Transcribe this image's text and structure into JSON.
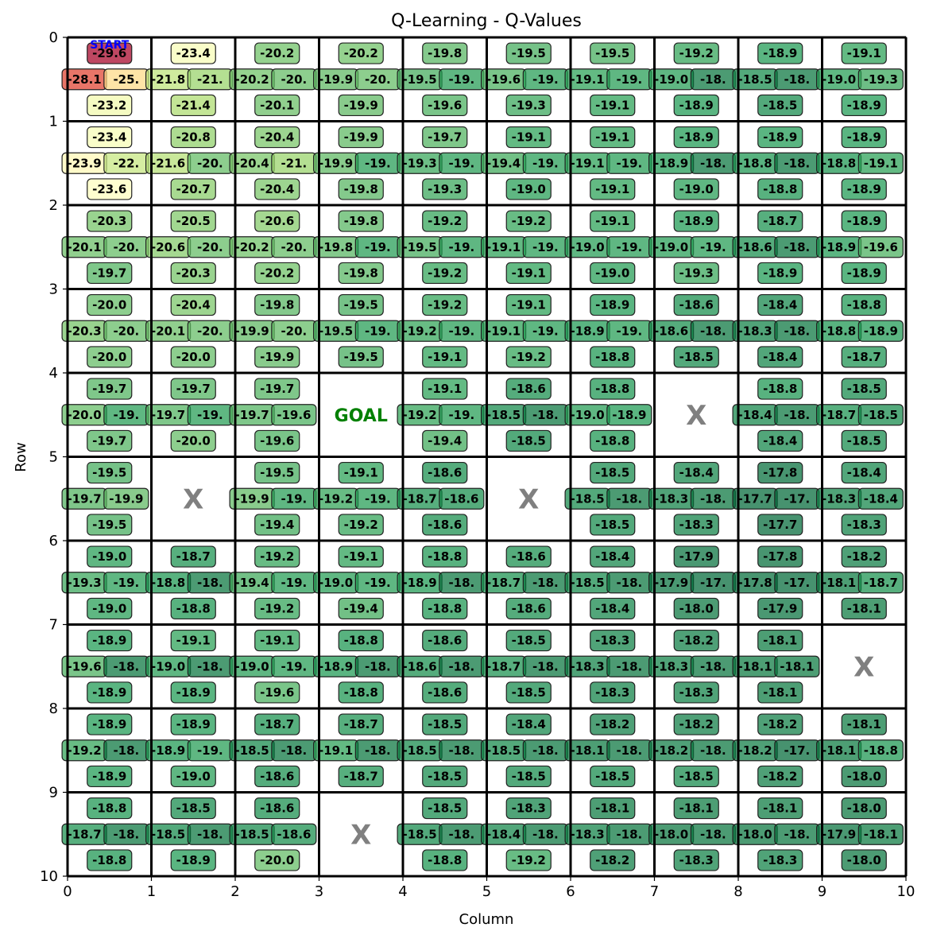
{
  "chart_data": {
    "type": "heatmap",
    "title": "Q-Learning - Q-Values",
    "xlabel": "Column",
    "ylabel": "Row",
    "xlim": [
      0,
      10
    ],
    "ylim": [
      10,
      0
    ],
    "xticks": [
      "0",
      "1",
      "2",
      "3",
      "4",
      "5",
      "6",
      "7",
      "8",
      "9",
      "10"
    ],
    "yticks": [
      "0",
      "1",
      "2",
      "3",
      "4",
      "5",
      "6",
      "7",
      "8",
      "9",
      "10"
    ],
    "start_label": "START",
    "goal_label": "GOAL",
    "obstacle_label": "X",
    "start_cell": [
      0,
      0
    ],
    "goal_cell": [
      4,
      3
    ],
    "obstacles": [
      [
        4,
        7
      ],
      [
        5,
        1
      ],
      [
        5,
        5
      ],
      [
        7,
        9
      ],
      [
        9,
        3
      ]
    ],
    "colormap": "RdYlGn",
    "color_range": [
      -29.6,
      -17.7
    ],
    "value_order": "up, left, right, down",
    "cells": [
      {
        "row": 0,
        "col": 0,
        "values": [
          "-29.6",
          "-28.1",
          "-25.",
          "-23.2"
        ]
      },
      {
        "row": 0,
        "col": 1,
        "values": [
          "-23.4",
          "-21.8",
          "-21.",
          "-21.4"
        ]
      },
      {
        "row": 0,
        "col": 2,
        "values": [
          "-20.2",
          "-20.2",
          "-20.",
          "-20.1"
        ]
      },
      {
        "row": 0,
        "col": 3,
        "values": [
          "-20.2",
          "-19.9",
          "-20.",
          "-19.9"
        ]
      },
      {
        "row": 0,
        "col": 4,
        "values": [
          "-19.8",
          "-19.5",
          "-19.",
          "-19.6"
        ]
      },
      {
        "row": 0,
        "col": 5,
        "values": [
          "-19.5",
          "-19.6",
          "-19.",
          "-19.3"
        ]
      },
      {
        "row": 0,
        "col": 6,
        "values": [
          "-19.5",
          "-19.1",
          "-19.",
          "-19.1"
        ]
      },
      {
        "row": 0,
        "col": 7,
        "values": [
          "-19.2",
          "-19.0",
          "-18.",
          "-18.9"
        ]
      },
      {
        "row": 0,
        "col": 8,
        "values": [
          "-18.9",
          "-18.5",
          "-18.",
          "-18.5"
        ]
      },
      {
        "row": 0,
        "col": 9,
        "values": [
          "-19.1",
          "-19.0",
          "-19.3",
          "-18.9"
        ]
      },
      {
        "row": 1,
        "col": 0,
        "values": [
          "-23.4",
          "-23.9",
          "-22.",
          "-23.6"
        ]
      },
      {
        "row": 1,
        "col": 1,
        "values": [
          "-20.8",
          "-21.6",
          "-20.",
          "-20.7"
        ]
      },
      {
        "row": 1,
        "col": 2,
        "values": [
          "-20.4",
          "-20.4",
          "-21.",
          "-20.4"
        ]
      },
      {
        "row": 1,
        "col": 3,
        "values": [
          "-19.9",
          "-19.9",
          "-19.",
          "-19.8"
        ]
      },
      {
        "row": 1,
        "col": 4,
        "values": [
          "-19.7",
          "-19.3",
          "-19.",
          "-19.3"
        ]
      },
      {
        "row": 1,
        "col": 5,
        "values": [
          "-19.1",
          "-19.4",
          "-19.",
          "-19.0"
        ]
      },
      {
        "row": 1,
        "col": 6,
        "values": [
          "-19.1",
          "-19.1",
          "-19.",
          "-19.1"
        ]
      },
      {
        "row": 1,
        "col": 7,
        "values": [
          "-18.9",
          "-18.9",
          "-18.",
          "-19.0"
        ]
      },
      {
        "row": 1,
        "col": 8,
        "values": [
          "-18.9",
          "-18.8",
          "-18.",
          "-18.8"
        ]
      },
      {
        "row": 1,
        "col": 9,
        "values": [
          "-18.9",
          "-18.8",
          "-19.1",
          "-18.9"
        ]
      },
      {
        "row": 2,
        "col": 0,
        "values": [
          "-20.3",
          "-20.1",
          "-20.",
          "-19.7"
        ]
      },
      {
        "row": 2,
        "col": 1,
        "values": [
          "-20.5",
          "-20.6",
          "-20.",
          "-20.3"
        ]
      },
      {
        "row": 2,
        "col": 2,
        "values": [
          "-20.6",
          "-20.2",
          "-20.",
          "-20.2"
        ]
      },
      {
        "row": 2,
        "col": 3,
        "values": [
          "-19.8",
          "-19.8",
          "-19.",
          "-19.8"
        ]
      },
      {
        "row": 2,
        "col": 4,
        "values": [
          "-19.2",
          "-19.5",
          "-19.",
          "-19.2"
        ]
      },
      {
        "row": 2,
        "col": 5,
        "values": [
          "-19.2",
          "-19.1",
          "-19.",
          "-19.1"
        ]
      },
      {
        "row": 2,
        "col": 6,
        "values": [
          "-19.1",
          "-19.0",
          "-19.",
          "-19.0"
        ]
      },
      {
        "row": 2,
        "col": 7,
        "values": [
          "-18.9",
          "-19.0",
          "-19.",
          "-19.3"
        ]
      },
      {
        "row": 2,
        "col": 8,
        "values": [
          "-18.7",
          "-18.6",
          "-18.",
          "-18.9"
        ]
      },
      {
        "row": 2,
        "col": 9,
        "values": [
          "-18.9",
          "-18.9",
          "-19.6",
          "-18.9"
        ]
      },
      {
        "row": 3,
        "col": 0,
        "values": [
          "-20.0",
          "-20.3",
          "-20.",
          "-20.0"
        ]
      },
      {
        "row": 3,
        "col": 1,
        "values": [
          "-20.4",
          "-20.1",
          "-20.",
          "-20.0"
        ]
      },
      {
        "row": 3,
        "col": 2,
        "values": [
          "-19.8",
          "-19.9",
          "-20.",
          "-19.9"
        ]
      },
      {
        "row": 3,
        "col": 3,
        "values": [
          "-19.5",
          "-19.5",
          "-19.",
          "-19.5"
        ]
      },
      {
        "row": 3,
        "col": 4,
        "values": [
          "-19.2",
          "-19.2",
          "-19.",
          "-19.1"
        ]
      },
      {
        "row": 3,
        "col": 5,
        "values": [
          "-19.1",
          "-19.1",
          "-19.",
          "-19.2"
        ]
      },
      {
        "row": 3,
        "col": 6,
        "values": [
          "-18.9",
          "-18.9",
          "-19.",
          "-18.8"
        ]
      },
      {
        "row": 3,
        "col": 7,
        "values": [
          "-18.6",
          "-18.6",
          "-18.",
          "-18.5"
        ]
      },
      {
        "row": 3,
        "col": 8,
        "values": [
          "-18.4",
          "-18.3",
          "-18.",
          "-18.4"
        ]
      },
      {
        "row": 3,
        "col": 9,
        "values": [
          "-18.8",
          "-18.8",
          "-18.9",
          "-18.7"
        ]
      },
      {
        "row": 4,
        "col": 0,
        "values": [
          "-19.7",
          "-20.0",
          "-19.",
          "-19.7"
        ]
      },
      {
        "row": 4,
        "col": 1,
        "values": [
          "-19.7",
          "-19.7",
          "-19.",
          "-20.0"
        ]
      },
      {
        "row": 4,
        "col": 2,
        "values": [
          "-19.7",
          "-19.7",
          "-19.6",
          "-19.6"
        ]
      },
      {
        "row": 4,
        "col": 4,
        "values": [
          "-19.1",
          "-19.2",
          "-19.",
          "-19.4"
        ]
      },
      {
        "row": 4,
        "col": 5,
        "values": [
          "-18.6",
          "-18.5",
          "-18.",
          "-18.5"
        ]
      },
      {
        "row": 4,
        "col": 6,
        "values": [
          "-18.8",
          "-19.0",
          "-18.9",
          "-18.8"
        ]
      },
      {
        "row": 4,
        "col": 8,
        "values": [
          "-18.8",
          "-18.4",
          "-18.",
          "-18.4"
        ]
      },
      {
        "row": 4,
        "col": 9,
        "values": [
          "-18.5",
          "-18.7",
          "-18.5",
          "-18.5"
        ]
      },
      {
        "row": 5,
        "col": 0,
        "values": [
          "-19.5",
          "-19.7",
          "-19.9",
          "-19.5"
        ]
      },
      {
        "row": 5,
        "col": 2,
        "values": [
          "-19.5",
          "-19.9",
          "-19.",
          "-19.4"
        ]
      },
      {
        "row": 5,
        "col": 3,
        "values": [
          "-19.1",
          "-19.2",
          "-19.",
          "-19.2"
        ]
      },
      {
        "row": 5,
        "col": 4,
        "values": [
          "-18.6",
          "-18.7",
          "-18.6",
          "-18.6"
        ]
      },
      {
        "row": 5,
        "col": 6,
        "values": [
          "-18.5",
          "-18.5",
          "-18.",
          "-18.5"
        ]
      },
      {
        "row": 5,
        "col": 7,
        "values": [
          "-18.4",
          "-18.3",
          "-18.",
          "-18.3"
        ]
      },
      {
        "row": 5,
        "col": 8,
        "values": [
          "-17.8",
          "-17.7",
          "-17.",
          "-17.7"
        ]
      },
      {
        "row": 5,
        "col": 9,
        "values": [
          "-18.4",
          "-18.3",
          "-18.4",
          "-18.3"
        ]
      },
      {
        "row": 6,
        "col": 0,
        "values": [
          "-19.0",
          "-19.3",
          "-19.",
          "-19.0"
        ]
      },
      {
        "row": 6,
        "col": 1,
        "values": [
          "-18.7",
          "-18.8",
          "-18.",
          "-18.8"
        ]
      },
      {
        "row": 6,
        "col": 2,
        "values": [
          "-19.2",
          "-19.4",
          "-19.",
          "-19.2"
        ]
      },
      {
        "row": 6,
        "col": 3,
        "values": [
          "-19.1",
          "-19.0",
          "-19.",
          "-19.4"
        ]
      },
      {
        "row": 6,
        "col": 4,
        "values": [
          "-18.8",
          "-18.9",
          "-18.",
          "-18.8"
        ]
      },
      {
        "row": 6,
        "col": 5,
        "values": [
          "-18.6",
          "-18.7",
          "-18.",
          "-18.6"
        ]
      },
      {
        "row": 6,
        "col": 6,
        "values": [
          "-18.4",
          "-18.5",
          "-18.",
          "-18.4"
        ]
      },
      {
        "row": 6,
        "col": 7,
        "values": [
          "-17.9",
          "-17.9",
          "-17.",
          "-18.0"
        ]
      },
      {
        "row": 6,
        "col": 8,
        "values": [
          "-17.8",
          "-17.8",
          "-17.",
          "-17.9"
        ]
      },
      {
        "row": 6,
        "col": 9,
        "values": [
          "-18.2",
          "-18.1",
          "-18.7",
          "-18.1"
        ]
      },
      {
        "row": 7,
        "col": 0,
        "values": [
          "-18.9",
          "-19.6",
          "-18.",
          "-18.9"
        ]
      },
      {
        "row": 7,
        "col": 1,
        "values": [
          "-19.1",
          "-19.0",
          "-18.",
          "-18.9"
        ]
      },
      {
        "row": 7,
        "col": 2,
        "values": [
          "-19.1",
          "-19.0",
          "-19.",
          "-19.6"
        ]
      },
      {
        "row": 7,
        "col": 3,
        "values": [
          "-18.8",
          "-18.9",
          "-18.",
          "-18.8"
        ]
      },
      {
        "row": 7,
        "col": 4,
        "values": [
          "-18.6",
          "-18.6",
          "-18.",
          "-18.6"
        ]
      },
      {
        "row": 7,
        "col": 5,
        "values": [
          "-18.5",
          "-18.7",
          "-18.",
          "-18.5"
        ]
      },
      {
        "row": 7,
        "col": 6,
        "values": [
          "-18.3",
          "-18.3",
          "-18.",
          "-18.3"
        ]
      },
      {
        "row": 7,
        "col": 7,
        "values": [
          "-18.2",
          "-18.3",
          "-18.",
          "-18.3"
        ]
      },
      {
        "row": 7,
        "col": 8,
        "values": [
          "-18.1",
          "-18.1",
          "-18.1",
          "-18.1"
        ]
      },
      {
        "row": 8,
        "col": 0,
        "values": [
          "-18.9",
          "-19.2",
          "-18.",
          "-18.9"
        ]
      },
      {
        "row": 8,
        "col": 1,
        "values": [
          "-18.9",
          "-18.9",
          "-19.",
          "-19.0"
        ]
      },
      {
        "row": 8,
        "col": 2,
        "values": [
          "-18.7",
          "-18.5",
          "-18.",
          "-18.6"
        ]
      },
      {
        "row": 8,
        "col": 3,
        "values": [
          "-18.7",
          "-19.1",
          "-18.",
          "-18.7"
        ]
      },
      {
        "row": 8,
        "col": 4,
        "values": [
          "-18.5",
          "-18.5",
          "-18.",
          "-18.5"
        ]
      },
      {
        "row": 8,
        "col": 5,
        "values": [
          "-18.4",
          "-18.5",
          "-18.",
          "-18.5"
        ]
      },
      {
        "row": 8,
        "col": 6,
        "values": [
          "-18.2",
          "-18.1",
          "-18.",
          "-18.5"
        ]
      },
      {
        "row": 8,
        "col": 7,
        "values": [
          "-18.2",
          "-18.2",
          "-18.",
          "-18.5"
        ]
      },
      {
        "row": 8,
        "col": 8,
        "values": [
          "-18.2",
          "-18.2",
          "-17.",
          "-18.2"
        ]
      },
      {
        "row": 8,
        "col": 9,
        "values": [
          "-18.1",
          "-18.1",
          "-18.8",
          "-18.0"
        ]
      },
      {
        "row": 9,
        "col": 0,
        "values": [
          "-18.8",
          "-18.7",
          "-18.",
          "-18.8"
        ]
      },
      {
        "row": 9,
        "col": 1,
        "values": [
          "-18.5",
          "-18.5",
          "-18.",
          "-18.9"
        ]
      },
      {
        "row": 9,
        "col": 2,
        "values": [
          "-18.6",
          "-18.5",
          "-18.6",
          "-20.0"
        ]
      },
      {
        "row": 9,
        "col": 4,
        "values": [
          "-18.5",
          "-18.5",
          "-18.",
          "-18.8"
        ]
      },
      {
        "row": 9,
        "col": 5,
        "values": [
          "-18.3",
          "-18.4",
          "-18.",
          "-19.2"
        ]
      },
      {
        "row": 9,
        "col": 6,
        "values": [
          "-18.1",
          "-18.3",
          "-18.",
          "-18.2"
        ]
      },
      {
        "row": 9,
        "col": 7,
        "values": [
          "-18.1",
          "-18.0",
          "-18.",
          "-18.3"
        ]
      },
      {
        "row": 9,
        "col": 8,
        "values": [
          "-18.1",
          "-18.0",
          "-18.",
          "-18.3"
        ]
      },
      {
        "row": 9,
        "col": 9,
        "values": [
          "-18.0",
          "-17.9",
          "-18.1",
          "-18.0"
        ]
      }
    ]
  }
}
